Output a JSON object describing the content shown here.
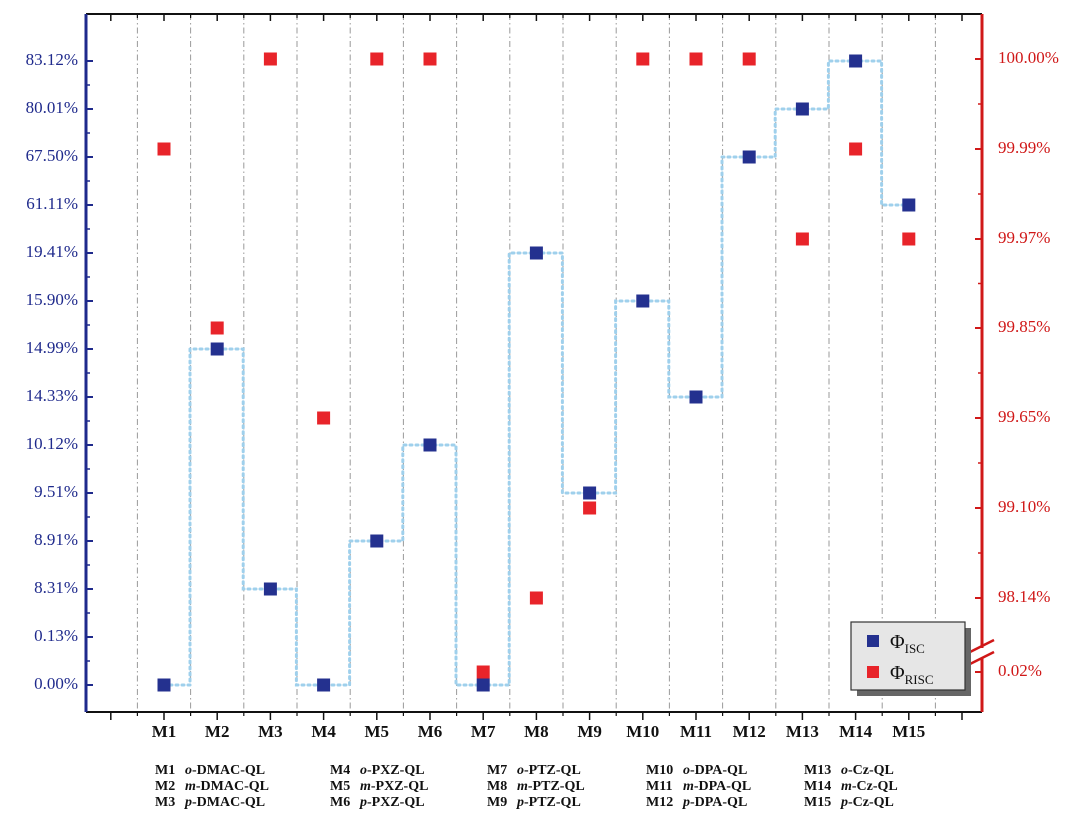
{
  "chart_data": {
    "type": "scatter",
    "categories": [
      "M1",
      "M2",
      "M3",
      "M4",
      "M5",
      "M6",
      "M7",
      "M8",
      "M9",
      "M10",
      "M11",
      "M12",
      "M13",
      "M14",
      "M15"
    ],
    "left_axis": {
      "ticks": [
        "0.00%",
        "0.13%",
        "8.31%",
        "8.91%",
        "9.51%",
        "10.12%",
        "14.33%",
        "14.99%",
        "15.90%",
        "19.41%",
        "61.11%",
        "67.50%",
        "80.01%",
        "83.12%"
      ],
      "color": "#1f2a8c"
    },
    "right_axis": {
      "ticks": [
        "0.02%",
        "98.14%",
        "99.10%",
        "99.65%",
        "99.85%",
        "99.97%",
        "99.99%",
        "100.00%"
      ],
      "color": "#d01818",
      "axis_break": true
    },
    "series": [
      {
        "name": "Φ",
        "name_sub": "ISC",
        "axis": "left",
        "color": "#24318f",
        "values": [
          "0.00%",
          "14.99%",
          "8.31%",
          "0.00%",
          "8.91%",
          "10.12%",
          "0.00%",
          "19.41%",
          "9.51%",
          "15.90%",
          "14.33%",
          "67.50%",
          "80.01%",
          "83.12%",
          "61.11%"
        ],
        "connector": "step-dotted",
        "connector_color": "#9fd0ec"
      },
      {
        "name": "Φ",
        "name_sub": "RISC",
        "axis": "right",
        "color": "#e8242a",
        "values": [
          "99.99%",
          "99.85%",
          "100.00%",
          "99.65%",
          "100.00%",
          "100.00%",
          "0.02%",
          "98.14%",
          "99.10%",
          "100.00%",
          "100.00%",
          "100.00%",
          "99.97%",
          "99.99%",
          "99.97%"
        ]
      }
    ],
    "legend_position": "bottom-right",
    "grid": "vertical-dashdot"
  },
  "key": [
    [
      {
        "code": "M1",
        "prefix": "o",
        "name": "-DMAC-QL"
      },
      {
        "code": "M2",
        "prefix": "m",
        "name": "-DMAC-QL"
      },
      {
        "code": "M3",
        "prefix": "p",
        "name": "-DMAC-QL"
      }
    ],
    [
      {
        "code": "M4",
        "prefix": "o",
        "name": "-PXZ-QL"
      },
      {
        "code": "M5",
        "prefix": "m",
        "name": "-PXZ-QL"
      },
      {
        "code": "M6",
        "prefix": "p",
        "name": "-PXZ-QL"
      }
    ],
    [
      {
        "code": "M7",
        "prefix": "o",
        "name": "-PTZ-QL"
      },
      {
        "code": "M8",
        "prefix": "m",
        "name": "-PTZ-QL"
      },
      {
        "code": "M9",
        "prefix": "p",
        "name": "-PTZ-QL"
      }
    ],
    [
      {
        "code": "M10",
        "prefix": "o",
        "name": "-DPA-QL"
      },
      {
        "code": "M11",
        "prefix": "m",
        "name": "-DPA-QL"
      },
      {
        "code": "M12",
        "prefix": "p",
        "name": "-DPA-QL"
      }
    ],
    [
      {
        "code": "M13",
        "prefix": "o",
        "name": "-Cz-QL"
      },
      {
        "code": "M14",
        "prefix": "m",
        "name": "-Cz-QL"
      },
      {
        "code": "M15",
        "prefix": "p",
        "name": "-Cz-QL"
      }
    ]
  ]
}
